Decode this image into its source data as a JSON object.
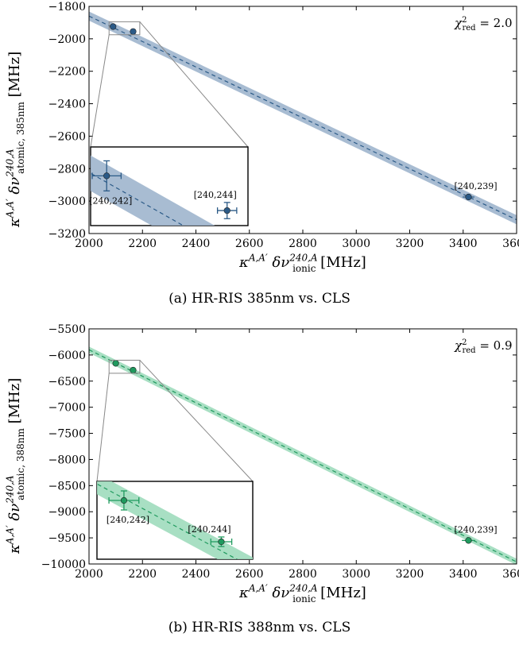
{
  "chart_data": [
    {
      "type": "scatter",
      "panel": "a",
      "caption": "(a) HR-RIS 385nm vs. CLS",
      "xlabel": "κA,A′ δν240,Aionic [MHz]",
      "ylabel": "κA,A′ δν240,Aatomic, 385nm [MHz]",
      "xlabel_parts": {
        "base": "κ",
        "sup1": "A,A′",
        "mid": " δν",
        "sup2": "240,A",
        "sub": "ionic",
        "unit": " [MHz]"
      },
      "ylabel_parts": {
        "base": "κ",
        "sup1": "A,A′",
        "mid": " δν",
        "sup2": "240,A",
        "sub": "atomic, 385nm",
        "unit": " [MHz]"
      },
      "chi2_text": {
        "lhs": "χ",
        "sup": "2",
        "sub": "red",
        "rhs": " = 2.0"
      },
      "xlim": [
        2000,
        3600
      ],
      "ylim": [
        -3200,
        -1800
      ],
      "xticks": [
        2000,
        2200,
        2400,
        2600,
        2800,
        3000,
        3200,
        3400,
        3600
      ],
      "xtick_labels": [
        "2000",
        "2200",
        "2400",
        "2600",
        "2800",
        "3000",
        "3200",
        "3400",
        "3600"
      ],
      "yticks": [
        -3200,
        -3000,
        -2800,
        -2600,
        -2400,
        -2200,
        -2000,
        -1800
      ],
      "ytick_labels": [
        "−3200",
        "−3000",
        "−2800",
        "−2600",
        "−2400",
        "−2200",
        "−2000",
        "−1800"
      ],
      "color": "#2b5a87",
      "band_color": "#9fb5cd",
      "fit_line": {
        "x": [
          2000,
          3600
        ],
        "y": [
          -1860,
          -3115
        ]
      },
      "band_halfwidth": 28,
      "points": [
        {
          "label": "[240,242]",
          "x": 2090,
          "y": -1925,
          "xerr": 9,
          "yerr": 13
        },
        {
          "label": "[240,244]",
          "x": 2165,
          "y": -1955,
          "xerr": 6,
          "yerr": 7
        },
        {
          "label": "[240,239]",
          "x": 3420,
          "y": -2975,
          "xerr": 22,
          "yerr": 15
        }
      ],
      "inset": {
        "xlim": [
          2080,
          2178
        ],
        "ylim": [
          -1968,
          -1900
        ],
        "zoom_box": {
          "x": [
            2075,
            2190
          ],
          "y": [
            -1975,
            -1895
          ]
        }
      }
    },
    {
      "type": "scatter",
      "panel": "b",
      "caption": "(b) HR-RIS 388nm vs. CLS",
      "xlabel": "κA,A′ δν240,Aionic [MHz]",
      "ylabel": "κA,A′ δν240,Aatomic, 388nm [MHz]",
      "xlabel_parts": {
        "base": "κ",
        "sup1": "A,A′",
        "mid": " δν",
        "sup2": "240,A",
        "sub": "ionic",
        "unit": " [MHz]"
      },
      "ylabel_parts": {
        "base": "κ",
        "sup1": "A,A′",
        "mid": " δν",
        "sup2": "240,A",
        "sub": "atomic, 388nm",
        "unit": " [MHz]"
      },
      "chi2_text": {
        "lhs": "χ",
        "sup": "2",
        "sub": "red",
        "rhs": " = 0.9"
      },
      "xlim": [
        2000,
        3600
      ],
      "ylim": [
        -10000,
        -5500
      ],
      "xticks": [
        2000,
        2200,
        2400,
        2600,
        2800,
        3000,
        3200,
        3400,
        3600
      ],
      "xtick_labels": [
        "2000",
        "2200",
        "2400",
        "2600",
        "2800",
        "3000",
        "3200",
        "3400",
        "3600"
      ],
      "yticks": [
        -10000,
        -9500,
        -9000,
        -8500,
        -8000,
        -7500,
        -7000,
        -6500,
        -6000,
        -5500
      ],
      "ytick_labels": [
        "−10000",
        "−9500",
        "−9000",
        "−8500",
        "−8000",
        "−7500",
        "−7000",
        "−6500",
        "−6000",
        "−5500"
      ],
      "color": "#1f9a5e",
      "band_color": "#9fdcbc",
      "fit_line": {
        "x": [
          2000,
          3600
        ],
        "y": [
          -5900,
          -9960
        ]
      },
      "band_halfwidth": 60,
      "points": [
        {
          "label": "[240,242]",
          "x": 2100,
          "y": -6160,
          "xerr": 10,
          "yerr": 30
        },
        {
          "label": "[240,244]",
          "x": 2165,
          "y": -6290,
          "xerr": 7,
          "yerr": 15
        },
        {
          "label": "[240,239]",
          "x": 3420,
          "y": -9550,
          "xerr": 25,
          "yerr": 40
        }
      ],
      "inset": {
        "xlim": [
          2082,
          2186
        ],
        "ylim": [
          -6345,
          -6100
        ],
        "zoom_box": {
          "x": [
            2075,
            2190
          ],
          "y": [
            -6350,
            -6100
          ]
        }
      }
    }
  ]
}
